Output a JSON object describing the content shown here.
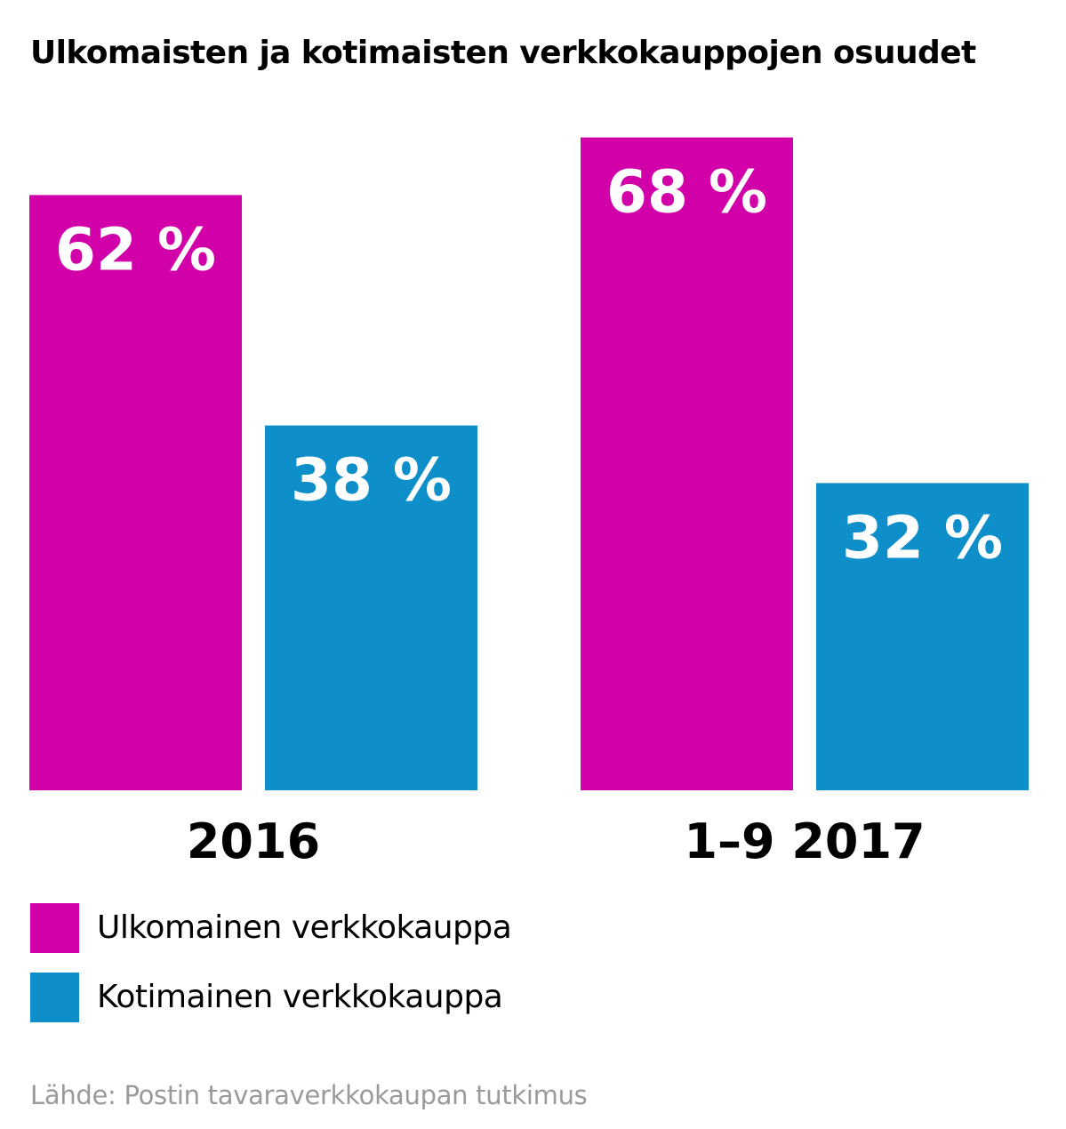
{
  "title": "Ulkomaisten ja kotimaisten verkkokauppojen osuudet",
  "source": "Lähde: Postin tavaraverkkokaupan tutkimus",
  "colors": {
    "foreign": "#d200a8",
    "domestic": "#0e8fc9",
    "label_text": "#ffffff",
    "category_text": "#000000"
  },
  "chart_data": {
    "type": "bar",
    "categories": [
      "2016",
      "1–9 2017"
    ],
    "series": [
      {
        "name": "Ulkomainen verkkokauppa",
        "values": [
          62,
          68
        ],
        "labels": [
          "62 %",
          "68 %"
        ]
      },
      {
        "name": "Kotimainen verkkokauppa",
        "values": [
          38,
          32
        ],
        "labels": [
          "38 %",
          "32 %"
        ]
      }
    ],
    "ylim": [
      0,
      100
    ],
    "grid": false,
    "legend_placement": "bottom-left"
  }
}
